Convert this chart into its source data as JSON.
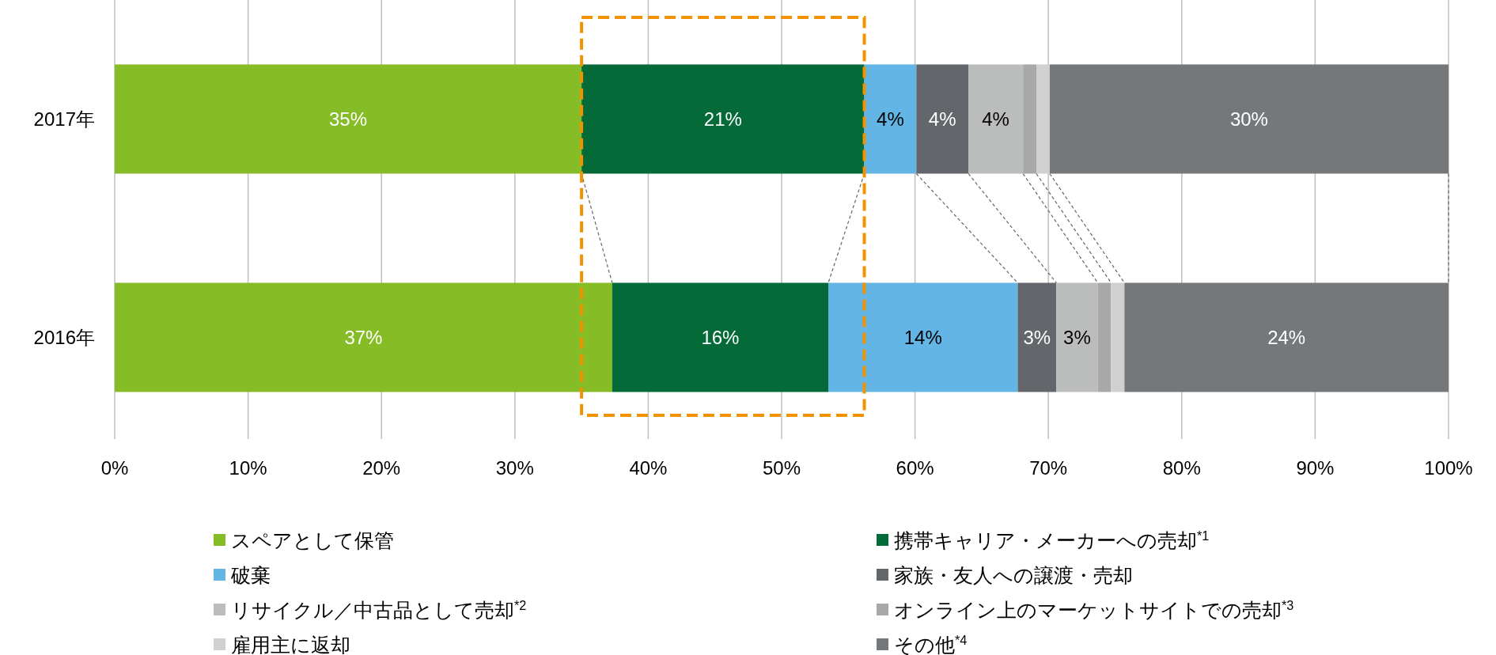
{
  "chart_data": {
    "type": "bar",
    "orientation": "horizontal",
    "stacked": true,
    "categories": [
      "2017年",
      "2016年"
    ],
    "series": [
      {
        "name": "スペアとして保管",
        "color": "#86bc25",
        "values": [
          35,
          37.3
        ],
        "value_labels": [
          "35%",
          "37%"
        ]
      },
      {
        "name": "携帯キャリア・メーカーへの売却$^{*1}$",
        "color": "#046a38",
        "values": [
          21.2,
          16.2
        ],
        "value_labels": [
          "21%",
          "16%"
        ]
      },
      {
        "name": "破棄",
        "color": "#62b5e5",
        "values": [
          3.9,
          14.2
        ],
        "value_labels": [
          "4%",
          "14%"
        ]
      },
      {
        "name": "家族・友人への譲渡・売却",
        "color": "#63666a",
        "values": [
          3.9,
          2.9
        ],
        "value_labels": [
          "4%",
          "3%"
        ]
      },
      {
        "name": "リサイクル／中古品として売却$^{*2}$",
        "color": "#bbbcbc",
        "values": [
          4.1,
          3.1
        ],
        "value_labels": [
          "4%",
          "3%"
        ]
      },
      {
        "name": "オンライン上のマーケットサイトでの売却$^{*3}$",
        "color": "#a7a8aa",
        "values": [
          1,
          1
        ],
        "value_labels": [
          null,
          null
        ]
      },
      {
        "name": "雇用主に返却",
        "color": "#d0d0ce",
        "values": [
          1,
          1
        ],
        "value_labels": [
          null,
          null
        ]
      },
      {
        "name": "その他$^{*4}$",
        "color": "#75787b",
        "values": [
          29.9,
          24.3
        ],
        "value_labels": [
          "30%",
          "24%"
        ]
      }
    ],
    "xlim": [
      0,
      100
    ],
    "xticks": [
      {
        "value": 0,
        "label": "0%"
      },
      {
        "value": 10,
        "label": "10%"
      },
      {
        "value": 20,
        "label": "20%"
      },
      {
        "value": 30,
        "label": "30%"
      },
      {
        "value": 40,
        "label": "40%"
      },
      {
        "value": 50,
        "label": "50%"
      },
      {
        "value": 60,
        "label": "60%"
      },
      {
        "value": 70,
        "label": "70%"
      },
      {
        "value": 80,
        "label": "80%"
      },
      {
        "value": 90,
        "label": "90%"
      },
      {
        "value": 100,
        "label": "100%"
      }
    ],
    "grid": "x",
    "legend": "bottom"
  }
}
